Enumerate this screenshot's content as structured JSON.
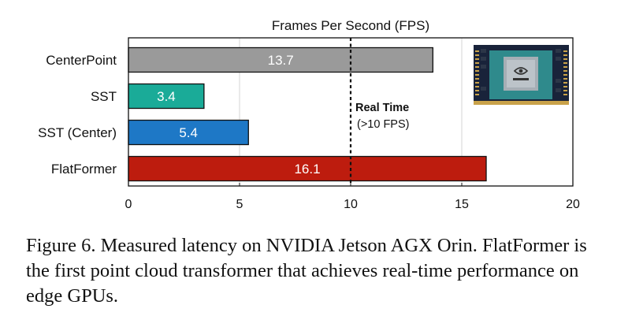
{
  "chart_data": {
    "type": "bar",
    "orientation": "horizontal",
    "title": "Frames Per Second (FPS)",
    "categories": [
      "CenterPoint",
      "SST",
      "SST (Center)",
      "FlatFormer"
    ],
    "values": [
      13.7,
      3.4,
      5.4,
      16.1
    ],
    "value_labels": [
      "13.7",
      "3.4",
      "5.4",
      "16.1"
    ],
    "colors": [
      "#9a9a9a",
      "#1aab98",
      "#1e78c6",
      "#bd1c0e"
    ],
    "xlim": [
      0,
      20
    ],
    "xticks": [
      0,
      5,
      10,
      15,
      20
    ],
    "xtick_labels": [
      "0",
      "5",
      "10",
      "15",
      "20"
    ],
    "grid": "vertical",
    "reference_line": {
      "x": 10,
      "label_bold": "Real Time",
      "label_sub": "(>10 FPS)"
    },
    "inset_image": "nvidia-jetson-board"
  },
  "caption": "Figure 6. Measured latency on NVIDIA Jetson AGX Orin. FlatFormer is the first point cloud transformer that achieves real-time performance on edge GPUs."
}
